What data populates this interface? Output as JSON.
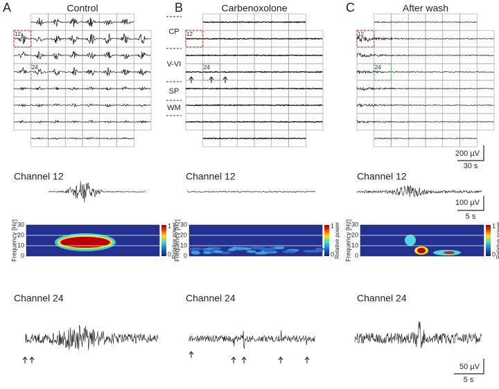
{
  "panels": [
    {
      "letter": "A",
      "title": "Control",
      "electrodes": [
        "12",
        "24"
      ],
      "channel_a": "Channel 12",
      "channel_b": "Channel 24"
    },
    {
      "letter": "B",
      "title": "Carbenoxolone",
      "electrodes": [
        "12",
        "24"
      ],
      "channel_a": "Channel 12",
      "channel_b": "Channel 24"
    },
    {
      "letter": "C",
      "title": "After wash",
      "electrodes": [
        "12",
        "24"
      ],
      "channel_a": "Channel 12",
      "channel_b": "Channel 24"
    }
  ],
  "layers": [
    "CP",
    "V-VI",
    "SP",
    "WM"
  ],
  "spectrogram": {
    "ylabel": "Frequency [Hz]",
    "yticks": [
      "30",
      "20",
      "10",
      "0"
    ],
    "colorbar_ticks": [
      "1",
      "0"
    ],
    "colorbar_label": "Relative power"
  },
  "scale_bars": {
    "grid": [
      "200 µV",
      "30 s"
    ],
    "ch12": [
      "100 µV",
      "5 s"
    ],
    "ch24": [
      "50 µV",
      "5 s"
    ]
  }
}
